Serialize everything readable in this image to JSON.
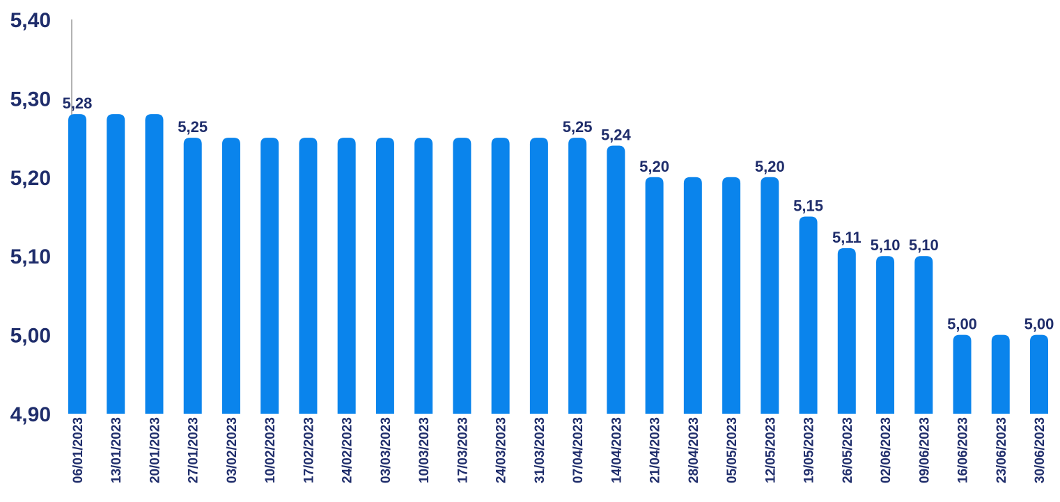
{
  "chart_data": {
    "type": "bar",
    "title": "",
    "xlabel": "",
    "ylabel": "",
    "ylim": [
      4.9,
      5.4
    ],
    "yticks": [
      "4,90",
      "5,00",
      "5,10",
      "5,20",
      "5,30",
      "5,40"
    ],
    "ytick_values": [
      4.9,
      5.0,
      5.1,
      5.2,
      5.3,
      5.4
    ],
    "grid": false,
    "bar_color": "#0a84ec",
    "text_color": "#1f2d6b",
    "categories": [
      "06/01/2023",
      "13/01/2023",
      "20/01/2023",
      "27/01/2023",
      "03/02/2023",
      "10/02/2023",
      "17/02/2023",
      "24/02/2023",
      "03/03/2023",
      "10/03/2023",
      "17/03/2023",
      "24/03/2023",
      "31/03/2023",
      "07/04/2023",
      "14/04/2023",
      "21/04/2023",
      "28/04/2023",
      "05/05/2023",
      "12/05/2023",
      "19/05/2023",
      "26/05/2023",
      "02/06/2023",
      "09/06/2023",
      "16/06/2023",
      "23/06/2023",
      "30/06/2023"
    ],
    "values": [
      5.28,
      5.28,
      5.28,
      5.25,
      5.25,
      5.25,
      5.25,
      5.25,
      5.25,
      5.25,
      5.25,
      5.25,
      5.25,
      5.25,
      5.24,
      5.2,
      5.2,
      5.2,
      5.2,
      5.15,
      5.11,
      5.1,
      5.1,
      5.0,
      5.0,
      5.0
    ],
    "data_labels": [
      "5,28",
      "",
      "",
      "5,25",
      "",
      "",
      "",
      "",
      "",
      "",
      "",
      "",
      "",
      "5,25",
      "5,24",
      "5,20",
      "",
      "",
      "5,20",
      "5,15",
      "5,11",
      "5,10",
      "5,10",
      "5,00",
      "",
      "5,00"
    ]
  }
}
